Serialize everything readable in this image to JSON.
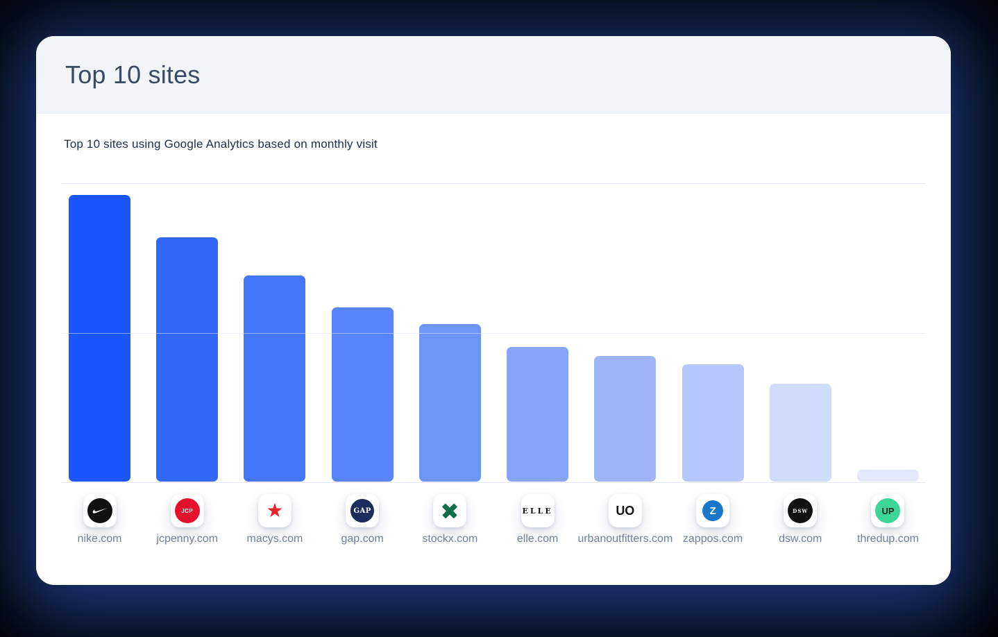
{
  "window": {
    "background_color": "#000000",
    "glow_color": "#1E387A"
  },
  "card": {
    "title": "Top 10 sites",
    "subtitle": "Top 10 sites using Google Analytics based on monthly visit",
    "header_bg": "#F1F5FA",
    "title_color": "#3A4A63"
  },
  "chart_data": {
    "type": "bar",
    "title": "Top 10 sites",
    "subtitle": "Top 10 sites using Google Analytics based on monthly visit",
    "xlabel": "",
    "ylabel": "",
    "ylim": [
      0,
      100
    ],
    "unit": "relative monthly visits (% of axis max, axis unlabeled)",
    "grid": true,
    "gridline_levels": [
      0,
      50,
      100
    ],
    "legend": false,
    "categories": [
      "nike.com",
      "jcpenny.com",
      "macys.com",
      "gap.com",
      "stockx.com",
      "elle.com",
      "urbanoutfitters.com",
      "zappos.com",
      "dsw.com",
      "thredup.com"
    ],
    "values": [
      95.6,
      81.5,
      68.8,
      58.2,
      52.5,
      44.8,
      41.8,
      39.1,
      32.6,
      4.0
    ],
    "bar_colors": [
      "#1A56FB",
      "#3269F9",
      "#4377F8",
      "#5784F7",
      "#6E94F5",
      "#86A5F6",
      "#9EB5F8",
      "#B6C7FA",
      "#D1DBFB",
      "#E4EAFC"
    ],
    "icons": [
      {
        "name": "nike-icon",
        "type": "circle",
        "bg": "#111111",
        "fg": "#ffffff",
        "glyph": "nike-swoosh",
        "size": 36
      },
      {
        "name": "jcpenney-icon",
        "type": "circle",
        "bg": "#E8112D",
        "fg": "#ffffff",
        "text": "JCP",
        "font": "sans",
        "text_size": 8,
        "weight": 700,
        "letter_spacing": 0.5,
        "size": 36
      },
      {
        "name": "macys-star-icon",
        "type": "star",
        "color": "#E8242E",
        "text": "★"
      },
      {
        "name": "gap-icon",
        "type": "circle",
        "bg": "#1D2C5B",
        "fg": "#ffffff",
        "text": "GAP",
        "font": "serif",
        "text_size": 10,
        "weight": 700,
        "letter_spacing": 0.5,
        "size": 34
      },
      {
        "name": "stockx-icon",
        "type": "cross",
        "color": "#0A6E46"
      },
      {
        "name": "elle-icon",
        "type": "text",
        "color": "#111111",
        "text": "ELLE",
        "font": "serif",
        "text_size": 11,
        "weight": 600,
        "letter_spacing": 3
      },
      {
        "name": "urbanoutfitters-icon",
        "type": "text",
        "color": "#111111",
        "text": "UO",
        "font": "sans",
        "text_size": 18,
        "weight": 700,
        "letter_spacing": 0
      },
      {
        "name": "zappos-icon",
        "type": "circle",
        "bg": "#1778CB",
        "fg": "#ffffff",
        "text": "Z",
        "font": "sans",
        "text_size": 15,
        "weight": 700,
        "letter_spacing": 0,
        "size": 30
      },
      {
        "name": "dsw-icon",
        "type": "circle",
        "bg": "#111111",
        "fg": "#ffffff",
        "text": "DSW",
        "font": "serif",
        "text_size": 7,
        "weight": 600,
        "letter_spacing": 1,
        "size": 36
      },
      {
        "name": "thredup-icon",
        "type": "circle",
        "bg": "#3ED598",
        "fg": "#16281F",
        "text": "UP",
        "font": "sans",
        "text_size": 13,
        "weight": 800,
        "letter_spacing": 0,
        "size": 36
      }
    ]
  }
}
